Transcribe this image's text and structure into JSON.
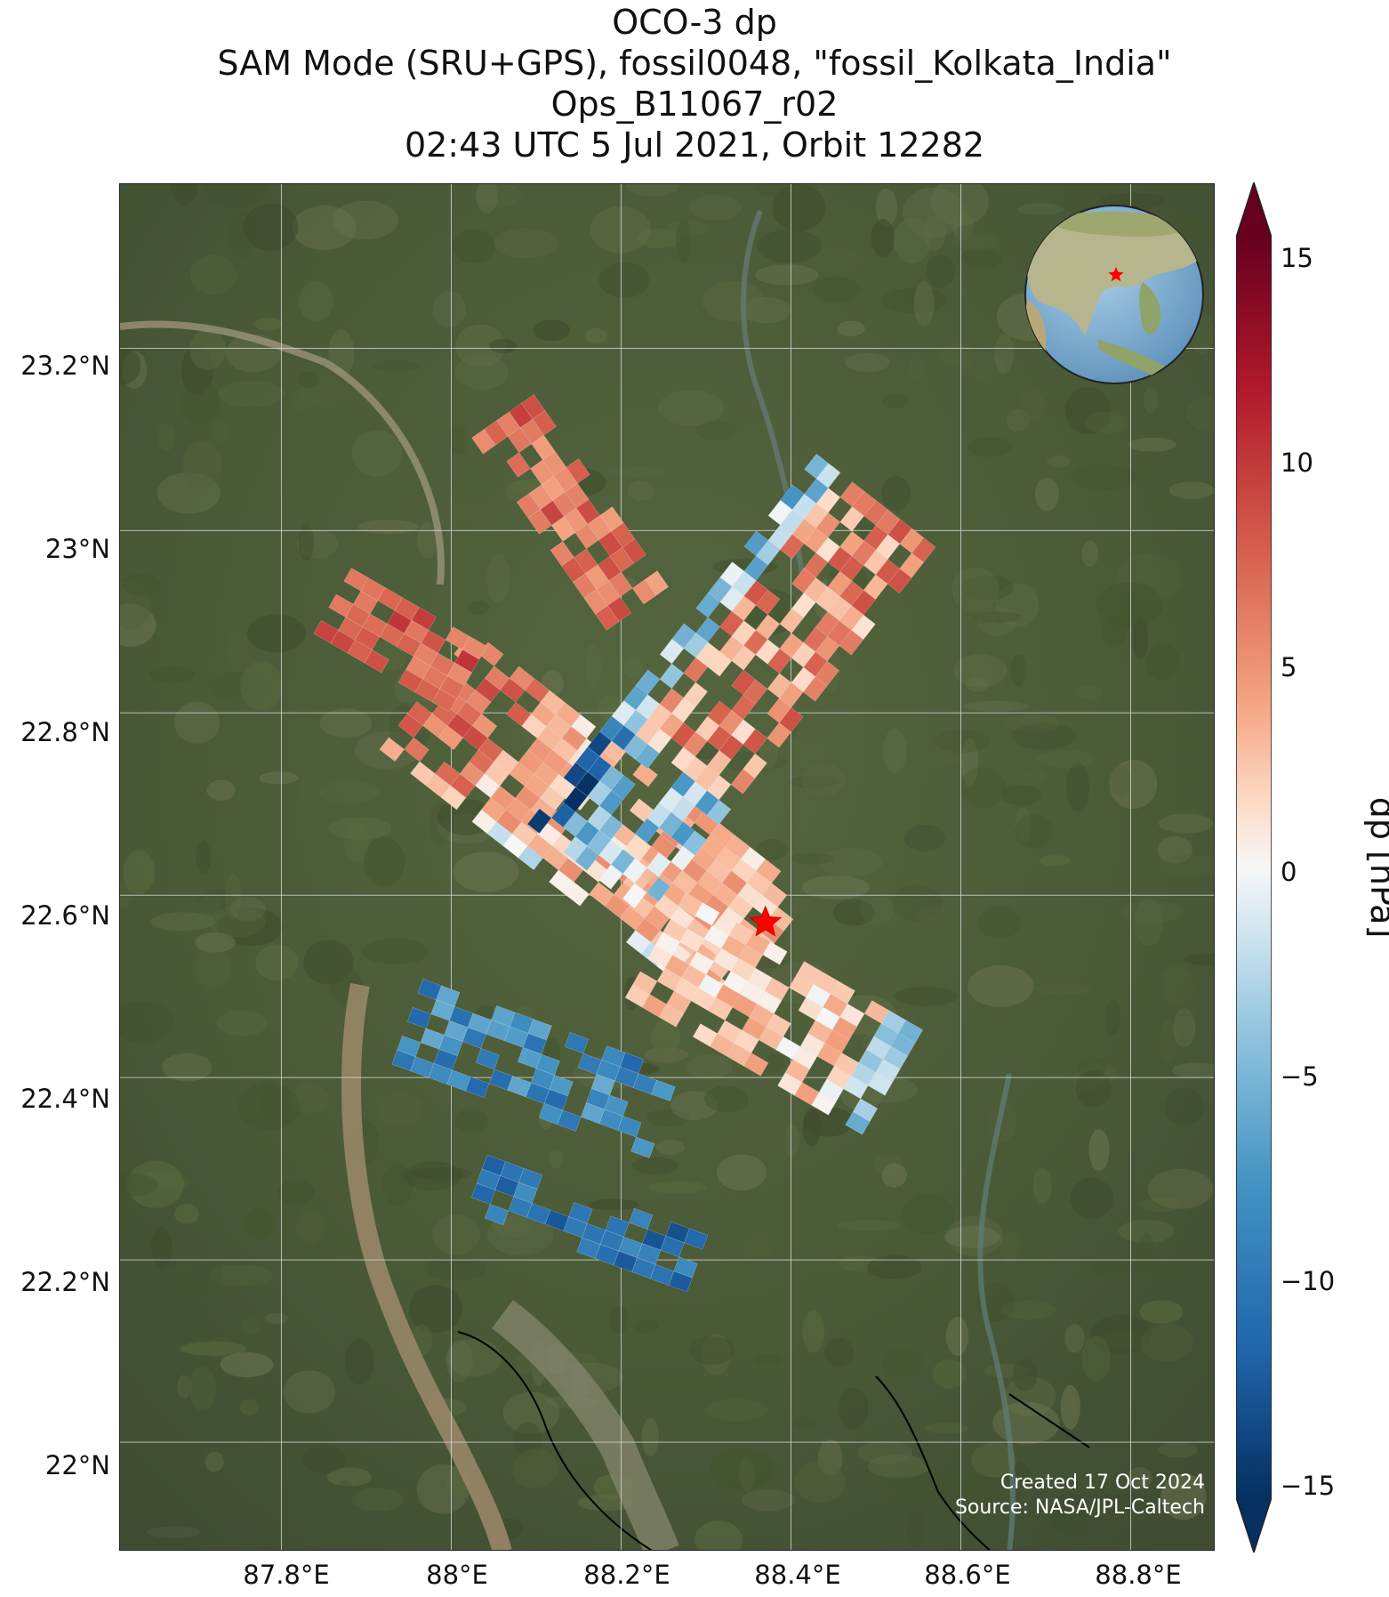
{
  "title": {
    "line1": "OCO-3 dp",
    "line2": "SAM Mode (SRU+GPS), fossil0048, \"fossil_Kolkata_India\"",
    "line3": "Ops_B11067_r02",
    "line4": "02:43 UTC 5 Jul 2021, Orbit 12282"
  },
  "map": {
    "lon_range": [
      87.61,
      88.9
    ],
    "lat_range": [
      21.88,
      23.38
    ],
    "lat_ticks": [
      "23.2°N",
      "23°N",
      "22.8°N",
      "22.6°N",
      "22.4°N",
      "22.2°N",
      "22°N"
    ],
    "lon_ticks": [
      "87.8°E",
      "88°E",
      "88.2°E",
      "88.4°E",
      "88.6°E",
      "88.8°E"
    ],
    "target": {
      "name": "fossil_Kolkata_India",
      "lon": 88.37,
      "lat": 22.57
    },
    "inset": "globe centered on South Asia with red star marking Kolkata",
    "credit_line1": "Created 17 Oct 2024",
    "credit_line2": "Source: NASA/JPL-Caltech"
  },
  "colorbar": {
    "label": "dp [hPa]",
    "min": -15,
    "max": 15,
    "ticks": [
      "15",
      "10",
      "5",
      "0",
      "−5",
      "−10",
      "−15"
    ],
    "extend": "both",
    "colormap": "RdBu_r"
  },
  "colors": {
    "neg_strong": "#053061",
    "neg_mid": "#4393c3",
    "neg_light": "#d1e5f0",
    "neutral": "#f7f7f7",
    "pos_light": "#fddbc7",
    "pos_mid": "#d6604d",
    "pos_strong": "#67001f",
    "target_star": "#ff0000"
  }
}
